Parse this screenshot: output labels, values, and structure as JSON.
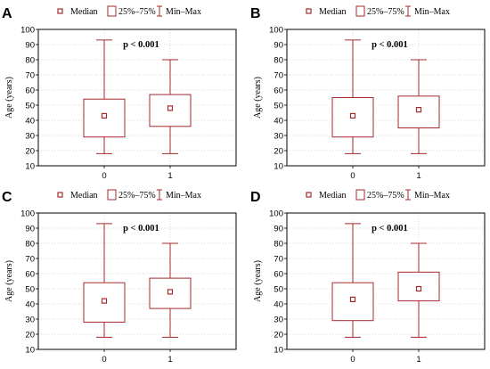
{
  "legend": {
    "median": "Median",
    "iqr": "25%–75%",
    "range": "Min–Max"
  },
  "colors": {
    "box": "#a52a2a",
    "frame": "#000000",
    "grid": "#c8c8c8"
  },
  "chart_data": [
    {
      "type": "box",
      "panel": "A",
      "ylabel": "Age (years)",
      "ylim": [
        10,
        100
      ],
      "yticks": [
        10,
        20,
        30,
        40,
        50,
        60,
        70,
        80,
        90,
        100
      ],
      "grid": true,
      "legend_position": "top",
      "categories": [
        "0",
        "1"
      ],
      "annotation": "p < 0.001",
      "boxes": [
        {
          "category": "0",
          "min": 18,
          "q1": 29,
          "median": 43,
          "q3": 54,
          "max": 93
        },
        {
          "category": "1",
          "min": 18,
          "q1": 36,
          "median": 48,
          "q3": 57,
          "max": 80
        }
      ]
    },
    {
      "type": "box",
      "panel": "B",
      "ylabel": "Age (years)",
      "ylim": [
        10,
        100
      ],
      "yticks": [
        10,
        20,
        30,
        40,
        50,
        60,
        70,
        80,
        90,
        100
      ],
      "grid": true,
      "legend_position": "top",
      "categories": [
        "0",
        "1"
      ],
      "annotation": "p < 0.001",
      "boxes": [
        {
          "category": "0",
          "min": 18,
          "q1": 29,
          "median": 43,
          "q3": 55,
          "max": 93
        },
        {
          "category": "1",
          "min": 18,
          "q1": 35,
          "median": 47,
          "q3": 56,
          "max": 80
        }
      ]
    },
    {
      "type": "box",
      "panel": "C",
      "ylabel": "Age (years)",
      "ylim": [
        10,
        100
      ],
      "yticks": [
        10,
        20,
        30,
        40,
        50,
        60,
        70,
        80,
        90,
        100
      ],
      "grid": true,
      "legend_position": "top",
      "categories": [
        "0",
        "1"
      ],
      "annotation": "p < 0.001",
      "boxes": [
        {
          "category": "0",
          "min": 18,
          "q1": 28,
          "median": 42,
          "q3": 54,
          "max": 93
        },
        {
          "category": "1",
          "min": 18,
          "q1": 37,
          "median": 48,
          "q3": 57,
          "max": 80
        }
      ]
    },
    {
      "type": "box",
      "panel": "D",
      "ylabel": "Age (years)",
      "ylim": [
        10,
        100
      ],
      "yticks": [
        10,
        20,
        30,
        40,
        50,
        60,
        70,
        80,
        90,
        100
      ],
      "grid": true,
      "legend_position": "top",
      "categories": [
        "0",
        "1"
      ],
      "annotation": "p < 0.001",
      "boxes": [
        {
          "category": "0",
          "min": 18,
          "q1": 29,
          "median": 43,
          "q3": 54,
          "max": 93
        },
        {
          "category": "1",
          "min": 18,
          "q1": 42,
          "median": 50,
          "q3": 61,
          "max": 80
        }
      ]
    }
  ]
}
